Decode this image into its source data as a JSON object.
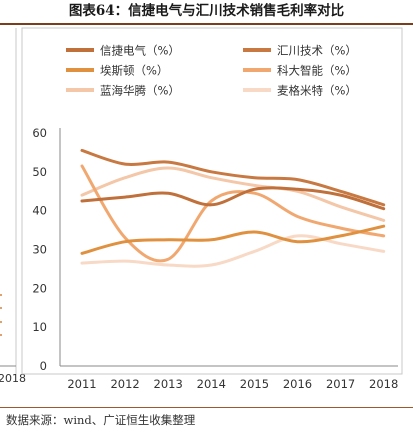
{
  "page": {
    "title": "图表64：信捷电气与汇川技术销售毛利率对比",
    "source": "数据来源：wind、广证恒生收集整理",
    "left_fragment_year": "2018"
  },
  "chart_data": {
    "type": "line",
    "title": "图表64：信捷电气与汇川技术销售毛利率对比",
    "xlabel": "",
    "ylabel": "",
    "x": [
      "2011",
      "2012",
      "2013",
      "2014",
      "2015",
      "2016",
      "2017",
      "2018"
    ],
    "ylim": [
      0,
      60
    ],
    "yticks": [
      0,
      10,
      20,
      30,
      40,
      50,
      60
    ],
    "grid": false,
    "legend_position": "top",
    "series": [
      {
        "name": "信捷电气（%）",
        "color": "#c0703a",
        "values": [
          42.5,
          43.5,
          44.5,
          41.5,
          45.5,
          45.5,
          44.0,
          40.5
        ]
      },
      {
        "name": "汇川技术（%）",
        "color": "#c87841",
        "values": [
          55.5,
          52.0,
          52.5,
          50.0,
          48.5,
          48.0,
          45.0,
          41.5
        ]
      },
      {
        "name": "埃斯顿（%）",
        "color": "#e0913f",
        "values": [
          29.0,
          32.0,
          32.5,
          32.5,
          34.5,
          32.0,
          33.5,
          36.0
        ]
      },
      {
        "name": "科大智能（%）",
        "color": "#f1a870",
        "values": [
          51.5,
          33.0,
          27.5,
          42.5,
          44.5,
          38.5,
          35.5,
          33.5
        ]
      },
      {
        "name": "蓝海华腾（%）",
        "color": "#f3c7a8",
        "values": [
          44.0,
          48.5,
          51.0,
          48.5,
          46.5,
          45.0,
          41.0,
          37.5
        ]
      },
      {
        "name": "麦格米特（%）",
        "color": "#f7d9c6",
        "values": [
          26.5,
          27.0,
          26.0,
          26.0,
          29.5,
          33.5,
          31.5,
          29.5
        ]
      }
    ]
  }
}
